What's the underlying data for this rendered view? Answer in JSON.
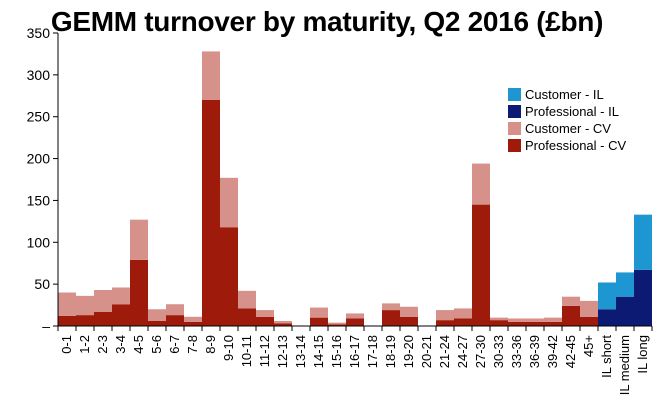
{
  "chart_data": {
    "type": "bar",
    "stacked": true,
    "title": "GEMM turnover by maturity, Q2 2016 (£bn)",
    "xlabel": "",
    "ylabel": "",
    "ylim": [
      0,
      350
    ],
    "yticks": [
      0,
      50,
      100,
      150,
      200,
      250,
      300,
      350
    ],
    "ytick_labels": [
      "–",
      "50",
      "100",
      "150",
      "200",
      "250",
      "300",
      "350"
    ],
    "grid": false,
    "legend_position": "right",
    "categories": [
      "0-1",
      "1-2",
      "2-3",
      "3-4",
      "4-5",
      "5-6",
      "6-7",
      "7-8",
      "8-9",
      "9-10",
      "10-11",
      "11-12",
      "12-13",
      "13-14",
      "14-15",
      "15-16",
      "16-17",
      "17-18",
      "18-19",
      "19-20",
      "20-21",
      "21-24",
      "24-27",
      "27-30",
      "30-33",
      "33-36",
      "36-39",
      "39-42",
      "42-45",
      "45+",
      "IL short",
      "IL medium",
      "IL long"
    ],
    "series": [
      {
        "name": "Professional - CV",
        "color": "#9e1a0a",
        "values": [
          12,
          13,
          17,
          26,
          79,
          6,
          13,
          5,
          270,
          118,
          21,
          11,
          3,
          0,
          10,
          2,
          9,
          0,
          19,
          11,
          0,
          7,
          9,
          145,
          7,
          5,
          5,
          5,
          24,
          11,
          0,
          0,
          0
        ]
      },
      {
        "name": "Customer - CV",
        "color": "#d6918a",
        "values": [
          28,
          23,
          26,
          20,
          48,
          14,
          13,
          6,
          58,
          59,
          21,
          8,
          3,
          0,
          12,
          2,
          6,
          0,
          8,
          12,
          0,
          12,
          12,
          49,
          3,
          4,
          4,
          5,
          11,
          19,
          0,
          0,
          0
        ]
      },
      {
        "name": "Professional - IL",
        "color": "#0d1a73",
        "values": [
          0,
          0,
          0,
          0,
          0,
          0,
          0,
          0,
          0,
          0,
          0,
          0,
          0,
          0,
          0,
          0,
          0,
          0,
          0,
          0,
          0,
          0,
          0,
          0,
          0,
          0,
          0,
          0,
          0,
          0,
          20,
          35,
          67
        ]
      },
      {
        "name": "Customer - IL",
        "color": "#1e96d2",
        "values": [
          0,
          0,
          0,
          0,
          0,
          0,
          0,
          0,
          0,
          0,
          0,
          0,
          0,
          0,
          0,
          0,
          0,
          0,
          0,
          0,
          0,
          0,
          0,
          0,
          0,
          0,
          0,
          0,
          0,
          0,
          32,
          29,
          66
        ]
      }
    ],
    "legend_order": [
      "Customer - IL",
      "Professional - IL",
      "Customer - CV",
      "Professional - CV"
    ]
  }
}
